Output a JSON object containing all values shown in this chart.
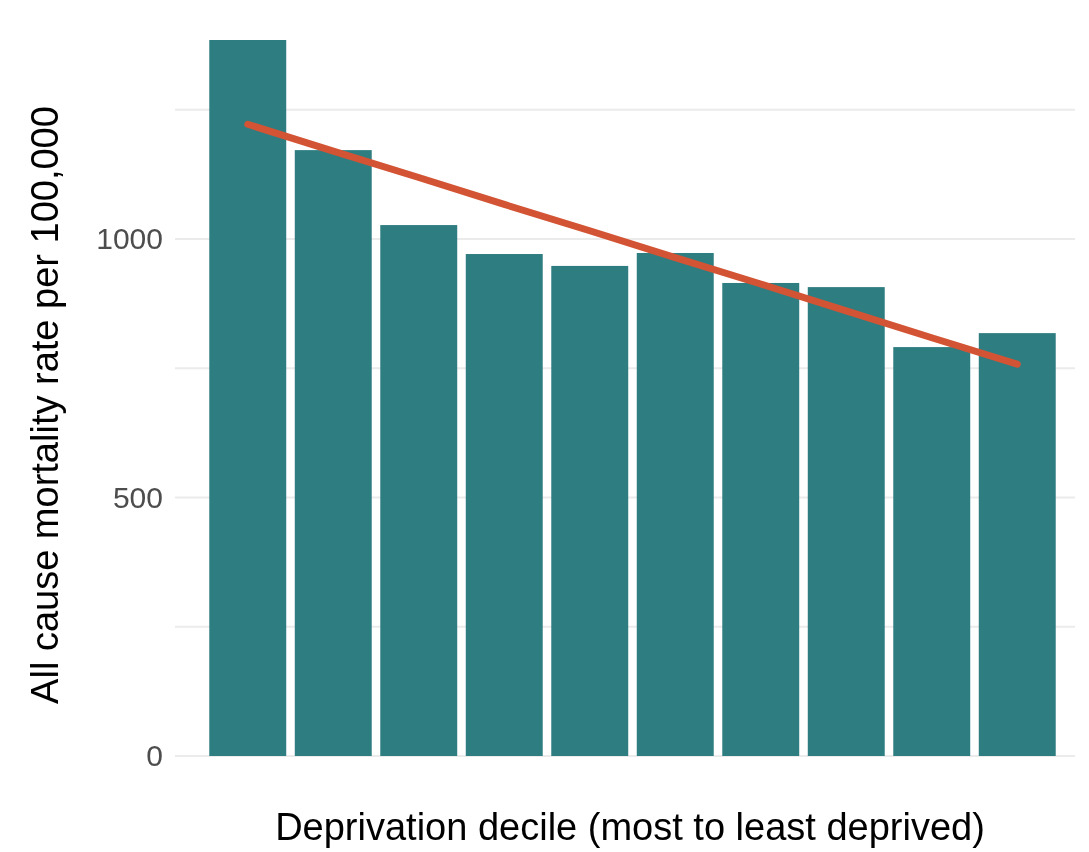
{
  "chart_data": {
    "type": "bar",
    "xlabel": "Deprivation decile (most to least deprived)",
    "ylabel": "All cause mortality rate per 100,000",
    "categories": [
      null,
      null,
      null,
      null,
      null,
      null,
      null,
      null,
      null,
      null
    ],
    "series": [
      {
        "color": "#2e7d80",
        "values": [
          1385,
          1172,
          1027,
          971,
          948,
          973,
          915,
          907,
          791,
          818
        ]
      },
      {
        "type": "line",
        "color": "#d35435",
        "values": [
          1222,
          1170,
          1119,
          1067,
          1016,
          964,
          913,
          861,
          809,
          758
        ]
      }
    ],
    "yticks": [
      0,
      {
        "value": 250,
        "label": null
      },
      500,
      {
        "value": 750,
        "label": null
      },
      1000,
      {
        "value": 1250,
        "label": null
      }
    ],
    "ylim": [
      0,
      1385
    ],
    "grid": "y",
    "tick_labels": "y"
  }
}
